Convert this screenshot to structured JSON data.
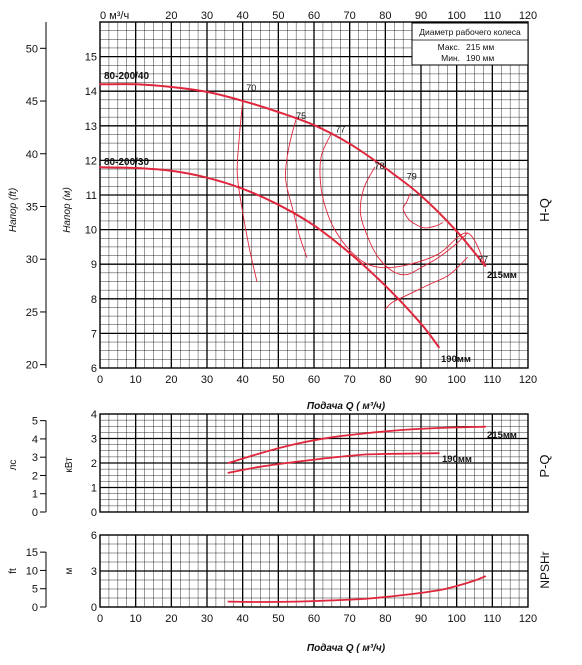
{
  "top_axis": {
    "unit_label": "0 м³/ч",
    "ticks": [
      "20",
      "30",
      "40",
      "50",
      "60",
      "70",
      "80",
      "90",
      "100",
      "110",
      "120"
    ]
  },
  "legend": {
    "title": "Диаметр рабочего колеса",
    "max_label": "Макс.",
    "max_value": "215 мм",
    "min_label": "Мин.",
    "min_value": "190 мм"
  },
  "x_ticks": [
    "0",
    "10",
    "20",
    "30",
    "40",
    "50",
    "60",
    "70",
    "80",
    "90",
    "100",
    "110",
    "120"
  ],
  "x_axis_label": "Подача Q ( м³/ч)",
  "hq": {
    "side_label": "H-Q",
    "ylabel_m": "Напор (м)",
    "ylabel_ft": "Напор (ft)",
    "ticks_m": [
      "6",
      "7",
      "8",
      "9",
      "10",
      "11",
      "12",
      "13",
      "14",
      "15"
    ],
    "ticks_ft": [
      "20",
      "25",
      "30",
      "35",
      "40",
      "45",
      "50"
    ],
    "curve_labels": {
      "max": "80-200/40",
      "min": "80-200/30",
      "max_d": "215мм",
      "min_d": "190мм"
    },
    "eff_labels": [
      "70",
      "75",
      "77",
      "78",
      "79",
      "77"
    ]
  },
  "pq": {
    "side_label": "P-Q",
    "ylabel_kw": "кВт",
    "ylabel_hp": "лс",
    "ticks_kw": [
      "0",
      "1",
      "2",
      "3",
      "4"
    ],
    "ticks_hp": [
      "0",
      "1",
      "2",
      "3",
      "4",
      "5"
    ],
    "curve_labels": {
      "max": "215мм",
      "min": "190мм"
    }
  },
  "npsh": {
    "side_label": "NPSHr",
    "ylabel_m": "м",
    "ylabel_ft": "ft",
    "ticks_m": [
      "0",
      "3",
      "6"
    ],
    "ticks_ft": [
      "0",
      "5",
      "10",
      "15"
    ]
  },
  "chart_data": [
    {
      "type": "line",
      "title": "H-Q",
      "xlabel": "Подача Q ( м³/ч)",
      "ylabel": "Напор (м)",
      "xlim": [
        0,
        120
      ],
      "ylim": [
        6,
        16
      ],
      "series": [
        {
          "name": "80-200/40",
          "x": [
            0,
            10,
            20,
            30,
            40,
            50,
            60,
            70,
            80,
            90,
            100,
            108
          ],
          "y": [
            14.2,
            14.2,
            14.12,
            13.98,
            13.72,
            13.4,
            13.02,
            12.48,
            11.78,
            10.98,
            9.95,
            8.95
          ]
        },
        {
          "name": "80-200/30",
          "x": [
            0,
            10,
            20,
            30,
            40,
            50,
            60,
            70,
            80,
            90,
            95
          ],
          "y": [
            11.8,
            11.78,
            11.7,
            11.5,
            11.18,
            10.72,
            10.12,
            9.32,
            8.38,
            7.28,
            6.6
          ]
        }
      ],
      "efficiency_contours": [
        {
          "label": "70",
          "x": [
            40,
            39,
            38.5,
            40,
            42,
            44
          ],
          "y": [
            13.7,
            12.6,
            11.6,
            10.5,
            9.4,
            8.5
          ]
        },
        {
          "label": "75",
          "x": [
            55,
            53,
            52,
            54,
            56,
            58
          ],
          "y": [
            13.2,
            12.4,
            11.5,
            10.6,
            9.8,
            9.2
          ]
        },
        {
          "label": "77",
          "x": [
            65,
            62,
            62,
            64,
            67,
            71,
            75,
            80,
            87,
            95,
            103,
            108
          ],
          "y": [
            12.8,
            12.1,
            11.2,
            10.4,
            9.8,
            9.3,
            9.0,
            8.9,
            9.0,
            9.3,
            9.9,
            9.0
          ]
        },
        {
          "label": "78",
          "x": [
            77,
            74,
            73,
            75,
            78,
            82,
            86,
            90,
            95,
            100,
            103
          ],
          "y": [
            11.8,
            11.2,
            10.5,
            9.8,
            9.2,
            8.8,
            8.7,
            8.9,
            9.2,
            9.6,
            9.9
          ]
        },
        {
          "label": "79",
          "x": [
            87,
            86,
            85,
            86.5,
            88.5,
            91,
            94,
            96
          ],
          "y": [
            11.05,
            10.8,
            10.6,
            10.3,
            10.15,
            10.05,
            10.1,
            10.2
          ]
        },
        {
          "label": "77",
          "x": [
            103,
            98,
            92,
            86,
            82,
            80
          ],
          "y": [
            9.2,
            8.7,
            8.4,
            8.1,
            7.9,
            7.7
          ]
        }
      ]
    },
    {
      "type": "line",
      "title": "P-Q",
      "ylabel": "кВт",
      "xlim": [
        0,
        120
      ],
      "ylim": [
        0,
        4
      ],
      "series": [
        {
          "name": "215мм",
          "x": [
            36,
            45,
            55,
            65,
            75,
            85,
            95,
            108
          ],
          "y": [
            2.0,
            2.4,
            2.78,
            3.05,
            3.22,
            3.35,
            3.43,
            3.48
          ]
        },
        {
          "name": "190мм",
          "x": [
            36,
            45,
            55,
            65,
            75,
            85,
            95
          ],
          "y": [
            1.6,
            1.85,
            2.05,
            2.22,
            2.35,
            2.38,
            2.4
          ]
        }
      ]
    },
    {
      "type": "line",
      "title": "NPSHr",
      "ylabel": "м",
      "xlim": [
        0,
        120
      ],
      "ylim": [
        0,
        6
      ],
      "series": [
        {
          "x": [
            36,
            45,
            55,
            65,
            75,
            85,
            95,
            100,
            105,
            108
          ],
          "y": [
            0.45,
            0.42,
            0.45,
            0.55,
            0.7,
            1.0,
            1.4,
            1.75,
            2.2,
            2.55
          ]
        }
      ]
    }
  ]
}
